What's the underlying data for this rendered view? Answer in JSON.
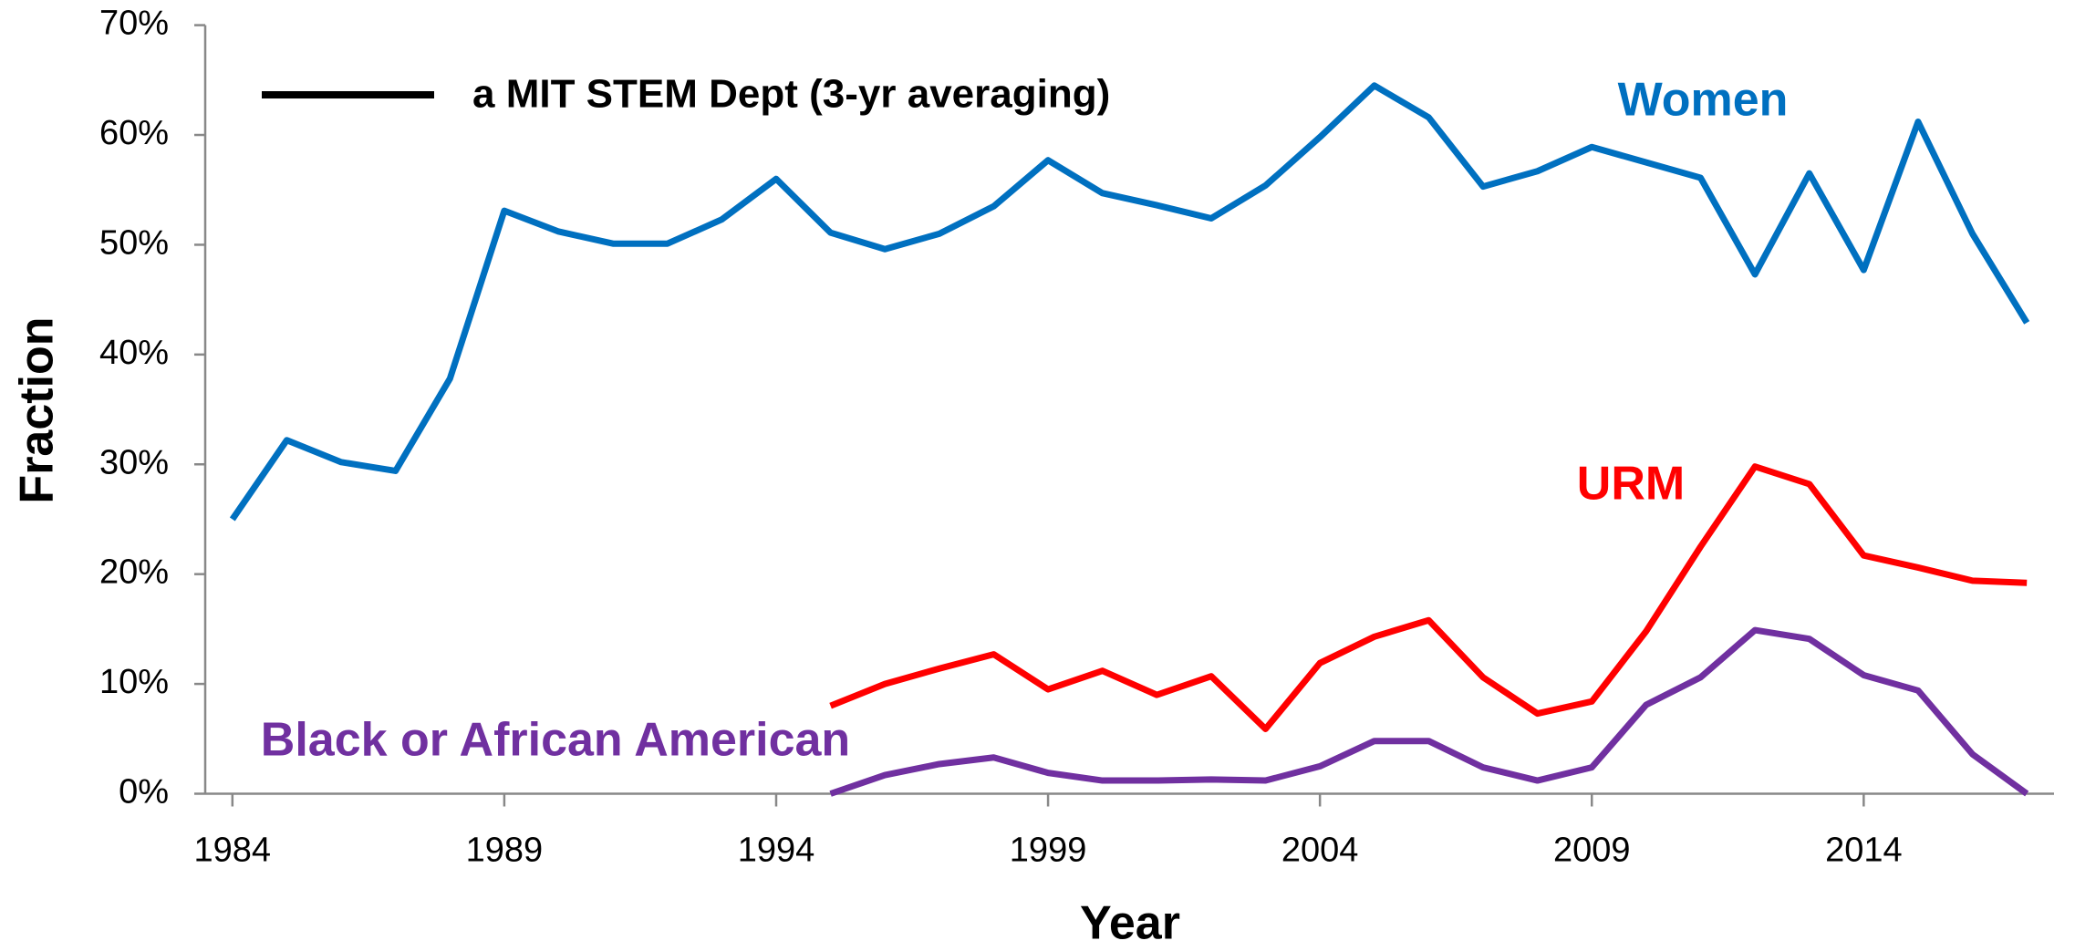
{
  "chart_data": {
    "type": "line",
    "x_label": "Year",
    "y_label": "Fraction",
    "x": [
      1984,
      1985,
      1986,
      1987,
      1988,
      1989,
      1990,
      1991,
      1992,
      1993,
      1994,
      1995,
      1996,
      1997,
      1998,
      1999,
      2000,
      2001,
      2002,
      2003,
      2004,
      2005,
      2006,
      2007,
      2008,
      2009,
      2010,
      2011,
      2012,
      2013,
      2014,
      2015,
      2016,
      2017
    ],
    "series": [
      {
        "name": "Women",
        "color": "#0070c0",
        "values": [
          25.0,
          32.2,
          30.2,
          29.4,
          37.8,
          53.1,
          51.2,
          50.1,
          50.1,
          52.3,
          56.0,
          51.1,
          49.6,
          51.0,
          53.5,
          57.7,
          54.7,
          53.6,
          52.4,
          55.4,
          59.8,
          64.5,
          61.6,
          55.3,
          56.7,
          58.9,
          57.5,
          56.1,
          47.3,
          56.5,
          47.7,
          61.2,
          51.0,
          42.9
        ]
      },
      {
        "name": "URM",
        "color": "#ff0000",
        "values": [
          null,
          null,
          null,
          null,
          null,
          null,
          null,
          null,
          null,
          null,
          null,
          8.0,
          10.0,
          11.4,
          12.7,
          9.5,
          11.2,
          9.0,
          10.7,
          5.9,
          11.9,
          14.3,
          15.8,
          10.6,
          7.3,
          8.4,
          14.8,
          22.5,
          29.8,
          28.2,
          21.7,
          20.6,
          19.4,
          19.2
        ]
      },
      {
        "name": "Black or African American",
        "color": "#7030a0",
        "values": [
          null,
          null,
          null,
          null,
          null,
          null,
          null,
          null,
          null,
          null,
          null,
          0,
          1.7,
          2.7,
          3.3,
          1.9,
          1.2,
          1.2,
          1.3,
          1.2,
          2.5,
          4.8,
          4.8,
          2.4,
          1.2,
          2.4,
          8.1,
          10.6,
          14.9,
          14.1,
          10.8,
          9.4,
          3.6,
          0
        ]
      }
    ],
    "legend": {
      "label": "a MIT STEM Dept (3-yr averaging)",
      "color": "#000000"
    },
    "xlim": [
      1983.5,
      2017.5
    ],
    "xticks": [
      1984,
      1989,
      1994,
      1999,
      2004,
      2009,
      2014
    ],
    "ylim": [
      0,
      70
    ],
    "yticks": [
      {
        "value": 0,
        "label": "0%"
      },
      {
        "value": 10,
        "label": "10%"
      },
      {
        "value": 20,
        "label": "20%"
      },
      {
        "value": 30,
        "label": "30%"
      },
      {
        "value": 40,
        "label": "40%"
      },
      {
        "value": 50,
        "label": "50%"
      },
      {
        "value": 60,
        "label": "60%"
      },
      {
        "value": 70,
        "label": "70%"
      }
    ]
  }
}
